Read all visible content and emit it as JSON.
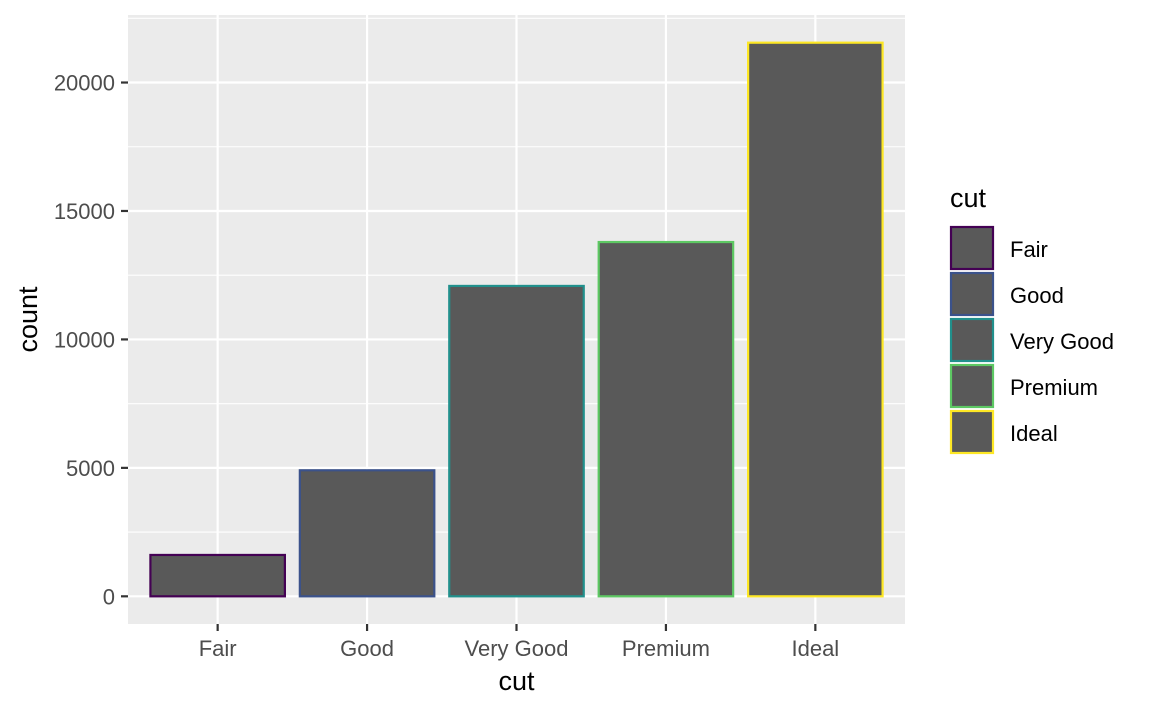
{
  "chart_data": {
    "type": "bar",
    "categories": [
      "Fair",
      "Good",
      "Very Good",
      "Premium",
      "Ideal"
    ],
    "values": [
      1610,
      4906,
      12082,
      13791,
      21551
    ],
    "bar_fill": "#595959",
    "outline_colors": [
      "#440154",
      "#3B528B",
      "#21908C",
      "#5DC863",
      "#FDE725"
    ],
    "xlabel": "cut",
    "ylabel": "count",
    "ylim": [
      -1077.55,
      22628.55
    ],
    "yticks": [
      0,
      5000,
      10000,
      15000,
      20000
    ],
    "ytick_labels": [
      "0",
      "5000",
      "10000",
      "15000",
      "20000"
    ],
    "grid": true,
    "panel_background": "#EBEBEB",
    "grid_color": "#FFFFFF",
    "legend": {
      "title": "cut",
      "position": "right",
      "entries": [
        "Fair",
        "Good",
        "Very Good",
        "Premium",
        "Ideal"
      ]
    }
  }
}
